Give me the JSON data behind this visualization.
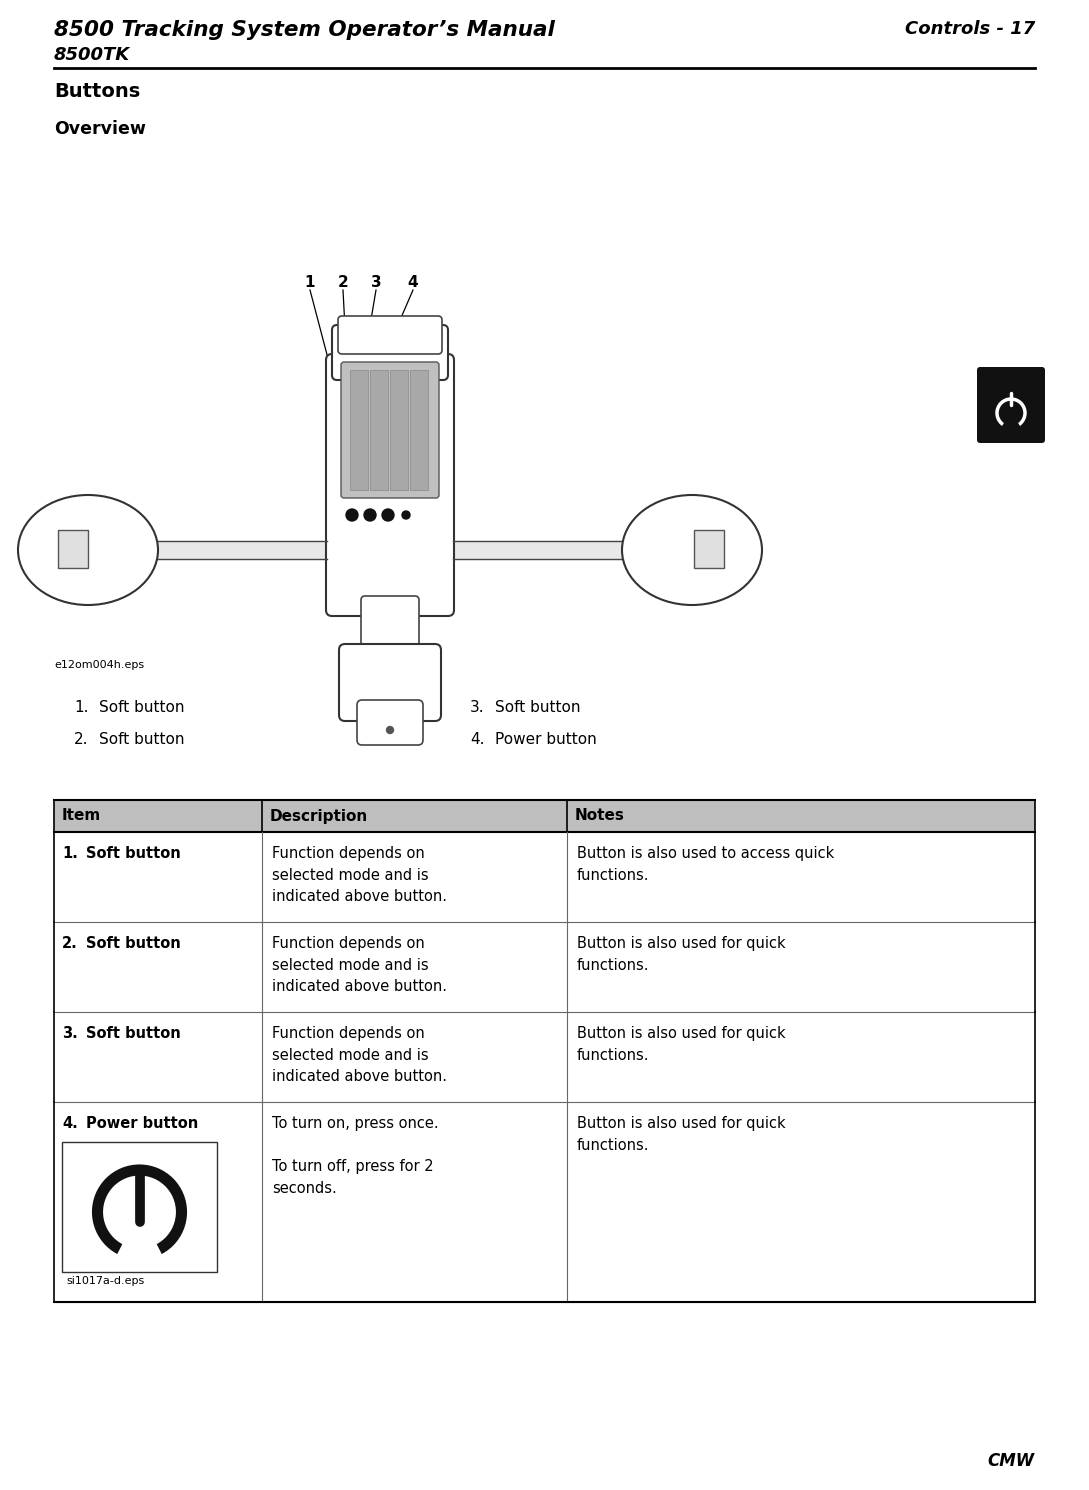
{
  "title_left": "8500 Tracking System Operator’s Manual",
  "title_right": "Controls - 17",
  "subtitle": "8500TK",
  "section_heading": "Buttons",
  "subsection_heading": "Overview",
  "image_caption": "e12om004h.eps",
  "list_items": [
    {
      "num": "1.",
      "text": "Soft button",
      "col": 0
    },
    {
      "num": "2.",
      "text": "Soft button",
      "col": 0
    },
    {
      "num": "3.",
      "text": "Soft button",
      "col": 1
    },
    {
      "num": "4.",
      "text": "Power button",
      "col": 1
    }
  ],
  "table_headers": [
    "Item",
    "Description",
    "Notes"
  ],
  "table_rows": [
    {
      "item_num": "1.",
      "item_name": "Soft button",
      "description": "Function depends on\nselected mode and is\nindicated above button.",
      "notes": "Button is also used to access quick\nfunctions."
    },
    {
      "item_num": "2.",
      "item_name": "Soft button",
      "description": "Function depends on\nselected mode and is\nindicated above button.",
      "notes": "Button is also used for quick\nfunctions."
    },
    {
      "item_num": "3.",
      "item_name": "Soft button",
      "description": "Function depends on\nselected mode and is\nindicated above button.",
      "notes": "Button is also used for quick\nfunctions."
    },
    {
      "item_num": "4.",
      "item_name": "Power button",
      "description": "To turn on, press once.\n\nTo turn off, press for 2\nseconds.",
      "notes": "Button is also used for quick\nfunctions."
    }
  ],
  "power_icon_caption": "si1017a-d.eps",
  "footer_right": "CMW",
  "table_header_bg": "#bebebe",
  "bg_color": "#ffffff"
}
